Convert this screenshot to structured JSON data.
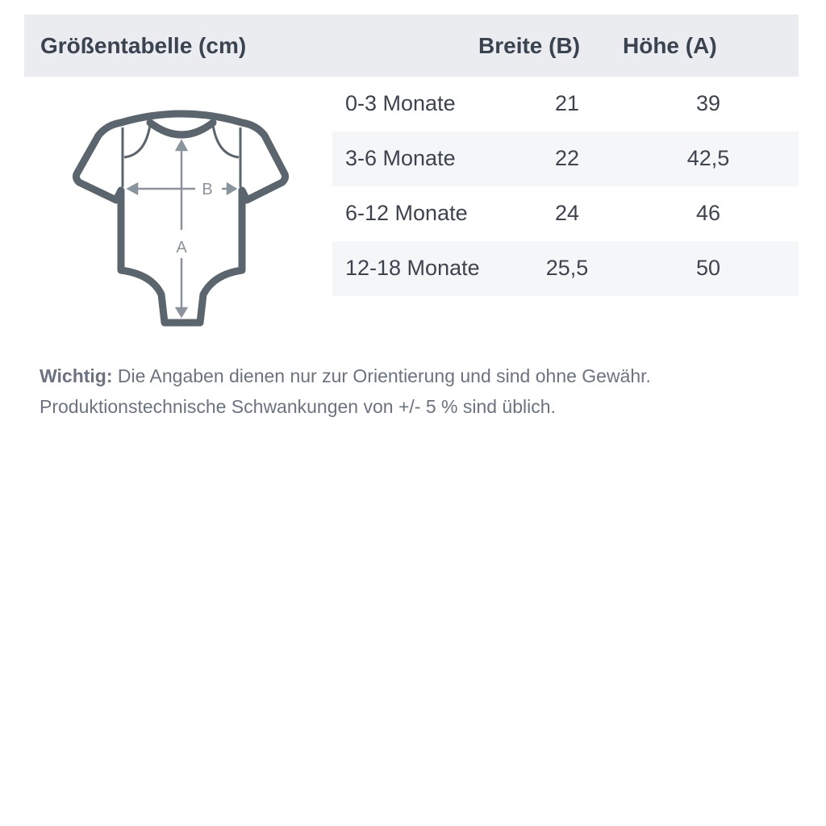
{
  "table": {
    "title": "Größentabelle (cm)",
    "columns": [
      "Breite (B)",
      "Höhe (A)"
    ],
    "rows": [
      {
        "size": "0-3 Monate",
        "breite": "21",
        "hoehe": "39"
      },
      {
        "size": "3-6 Monate",
        "breite": "22",
        "hoehe": "42,5"
      },
      {
        "size": "6-12 Monate",
        "breite": "24",
        "hoehe": "46"
      },
      {
        "size": "12-18 Monate",
        "breite": "25,5",
        "hoehe": "50"
      }
    ]
  },
  "diagram": {
    "label_b": "B",
    "label_a": "A",
    "outline_color": "#5a656d",
    "arrow_color": "#8a949c"
  },
  "note": {
    "label": "Wichtig:",
    "line1": " Die Angaben dienen nur zur Orientierung und sind ohne Gewähr.",
    "line2": "Produktionstechnische Schwankungen von +/- 5 % sind üblich."
  }
}
